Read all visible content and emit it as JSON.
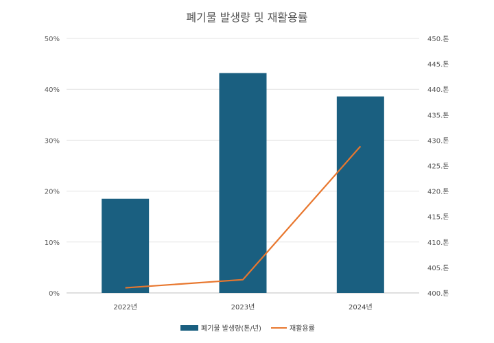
{
  "chart_data": {
    "type": "bar+line",
    "title": "폐기물 발생량 및 재활용률",
    "categories": [
      "2022년",
      "2023년",
      "2024년"
    ],
    "left_axis": {
      "ticks": [
        "0%",
        "10%",
        "20%",
        "30%",
        "40%",
        "50%"
      ],
      "range": [
        0,
        50
      ]
    },
    "right_axis": {
      "ticks": [
        "400.톤",
        "405.톤",
        "410.톤",
        "415.톤",
        "420.톤",
        "425.톤",
        "430.톤",
        "435.톤",
        "440.톤",
        "445.톤",
        "450.톤"
      ],
      "range": [
        400,
        450
      ]
    },
    "series": [
      {
        "name": "폐기물 발생량(톤/년)",
        "type": "bar",
        "axis": "left",
        "color": "#1a5f80",
        "values": [
          18.5,
          43.2,
          38.6
        ]
      },
      {
        "name": "재활용률",
        "type": "line",
        "axis": "right",
        "color": "#e8772e",
        "values": [
          401,
          402.6,
          428.8
        ]
      }
    ],
    "grid": true,
    "legend_position": "bottom"
  }
}
